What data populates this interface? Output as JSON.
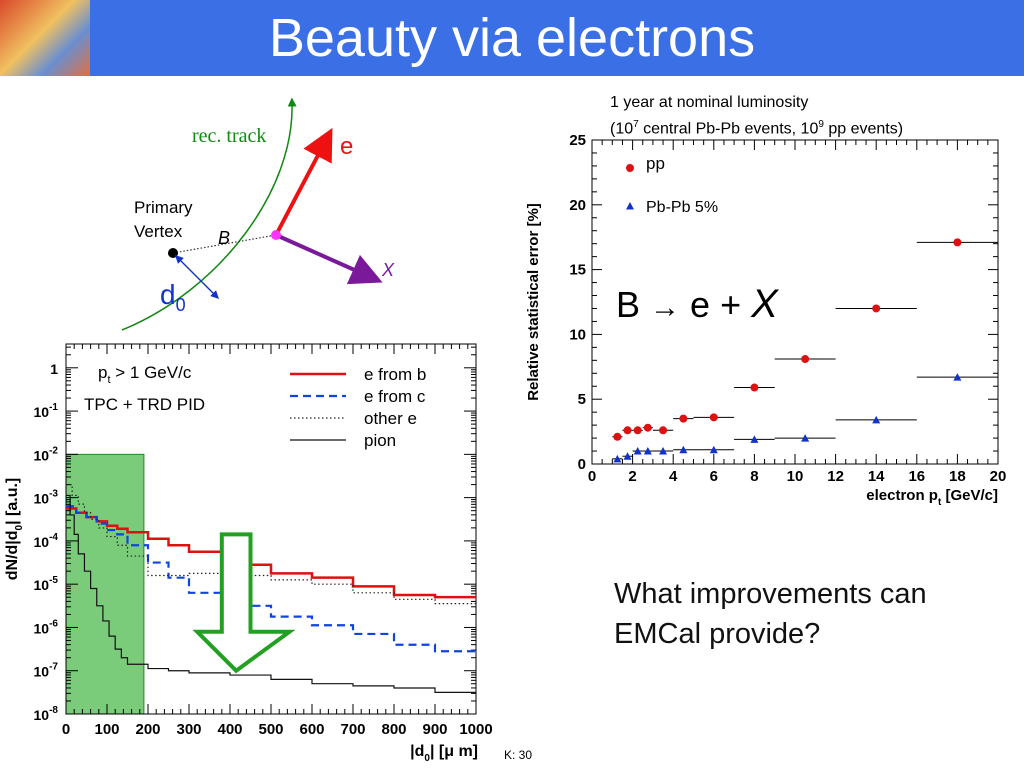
{
  "slide": {
    "title": "Beauty via electrons",
    "question": "What improvements can EMCal provide?",
    "formula_prefix": "B",
    "formula_arrow": "→",
    "formula_mid": "e +",
    "formula_x": "X",
    "footer": "K: 30",
    "colors": {
      "header": "#3a6fe6",
      "title": "#ffffff"
    }
  },
  "diagram": {
    "rec_track": "rec. track",
    "electron": "e",
    "primary_vertex_line1": "Primary",
    "primary_vertex_line2": "Vertex",
    "b_label": "B",
    "x_label": "X",
    "d0_label": "d",
    "d0_sub": "0"
  },
  "chart_data": [
    {
      "type": "line",
      "title_line1": "1 year at nominal luminosity",
      "title_line2_a": "(10",
      "title_line2_sup1": "7",
      "title_line2_b": " central Pb-Pb events, 10",
      "title_line2_sup2": "9",
      "title_line2_c": " pp events)",
      "xlabel": "electron  p",
      "xlabel_sub": "t",
      "xlabel_unit": " [GeV/c]",
      "ylabel": "Relative statistical error [%]",
      "xlim": [
        0,
        20
      ],
      "ylim": [
        0,
        25
      ],
      "xticks": [
        0,
        2,
        4,
        6,
        8,
        10,
        12,
        14,
        16,
        18,
        20
      ],
      "yticks": [
        0,
        5,
        10,
        15,
        20,
        25
      ],
      "legend_position": "top-left",
      "series": [
        {
          "name": "pp",
          "color": "#dd1111",
          "marker": "circle",
          "points": [
            {
              "x": 1.25,
              "y": 2.1,
              "xmin": 1.0,
              "xmax": 1.5
            },
            {
              "x": 1.75,
              "y": 2.6,
              "xmin": 1.5,
              "xmax": 2.0
            },
            {
              "x": 2.25,
              "y": 2.6,
              "xmin": 2.0,
              "xmax": 2.5
            },
            {
              "x": 2.75,
              "y": 2.8,
              "xmin": 2.5,
              "xmax": 3.0
            },
            {
              "x": 3.5,
              "y": 2.6,
              "xmin": 3.0,
              "xmax": 4.0
            },
            {
              "x": 4.5,
              "y": 3.5,
              "xmin": 4.0,
              "xmax": 5.0
            },
            {
              "x": 6.0,
              "y": 3.6,
              "xmin": 5.0,
              "xmax": 7.0
            },
            {
              "x": 8.0,
              "y": 5.9,
              "xmin": 7.0,
              "xmax": 9.0
            },
            {
              "x": 10.5,
              "y": 8.1,
              "xmin": 9.0,
              "xmax": 12.0
            },
            {
              "x": 14.0,
              "y": 12.0,
              "xmin": 12.0,
              "xmax": 16.0
            },
            {
              "x": 18.0,
              "y": 17.1,
              "xmin": 16.0,
              "xmax": 20.0
            }
          ]
        },
        {
          "name": "Pb-Pb 5%",
          "color": "#1133cc",
          "marker": "triangle",
          "points": [
            {
              "x": 1.25,
              "y": 0.4,
              "xmin": 1.0,
              "xmax": 1.5
            },
            {
              "x": 1.75,
              "y": 0.6,
              "xmin": 1.5,
              "xmax": 2.0
            },
            {
              "x": 2.25,
              "y": 1.0,
              "xmin": 2.0,
              "xmax": 2.5
            },
            {
              "x": 2.75,
              "y": 1.0,
              "xmin": 2.5,
              "xmax": 3.0
            },
            {
              "x": 3.5,
              "y": 1.0,
              "xmin": 3.0,
              "xmax": 4.0
            },
            {
              "x": 4.5,
              "y": 1.1,
              "xmin": 4.0,
              "xmax": 5.0
            },
            {
              "x": 6.0,
              "y": 1.1,
              "xmin": 5.0,
              "xmax": 7.0
            },
            {
              "x": 8.0,
              "y": 1.9,
              "xmin": 7.0,
              "xmax": 9.0
            },
            {
              "x": 10.5,
              "y": 2.0,
              "xmin": 9.0,
              "xmax": 12.0
            },
            {
              "x": 14.0,
              "y": 3.4,
              "xmin": 12.0,
              "xmax": 16.0
            },
            {
              "x": 18.0,
              "y": 6.7,
              "xmin": 16.0,
              "xmax": 20.0
            }
          ]
        }
      ]
    },
    {
      "type": "line",
      "xlabel": "|d",
      "xlabel_sub": "0",
      "xlabel_unit": "| [μ m]",
      "ylabel_a": "dN/d|d",
      "ylabel_sub": "0",
      "ylabel_b": "| [a.u.]",
      "log_y": true,
      "xlim": [
        0,
        1000
      ],
      "ylim_exp": [
        -8,
        0.55
      ],
      "xticks": [
        0,
        100,
        200,
        300,
        400,
        500,
        600,
        700,
        800,
        900,
        1000
      ],
      "yticks": [
        {
          "exp": 0,
          "label": "1",
          "sup": ""
        },
        {
          "exp": -1,
          "label": "10",
          "sup": "-1"
        },
        {
          "exp": -2,
          "label": "10",
          "sup": "-2"
        },
        {
          "exp": -3,
          "label": "10",
          "sup": "-3"
        },
        {
          "exp": -4,
          "label": "10",
          "sup": "-4"
        },
        {
          "exp": -5,
          "label": "10",
          "sup": "-5"
        },
        {
          "exp": -6,
          "label": "10",
          "sup": "-6"
        },
        {
          "exp": -7,
          "label": "10",
          "sup": "-7"
        },
        {
          "exp": -8,
          "label": "10",
          "sup": "-8"
        }
      ],
      "cut_text_a": "p",
      "cut_text_sub": "t",
      "cut_text_b": " > 1 GeV/c",
      "pid_text": "TPC + TRD  PID",
      "highlight_range": {
        "x": [
          0,
          190
        ],
        "ymax_exp": -2.0,
        "color": "#22aa22"
      },
      "reduction_arrow": {
        "x_left": 350,
        "x_right": 480,
        "x_tip": 415,
        "top_exp": -3.85,
        "mid_exp": -6.1,
        "tip_exp": -7.0,
        "color": "#22a022"
      },
      "legend_position": "top-right",
      "series": [
        {
          "name": "e from b",
          "color": "#dd1111",
          "dash": "",
          "width": 2.5,
          "x": [
            0,
            25,
            50,
            75,
            100,
            125,
            150,
            200,
            250,
            300,
            400,
            500,
            600,
            700,
            800,
            900,
            1000
          ],
          "y_exp": [
            -3.25,
            -3.35,
            -3.45,
            -3.55,
            -3.65,
            -3.72,
            -3.8,
            -3.95,
            -4.1,
            -4.25,
            -4.55,
            -4.75,
            -4.85,
            -5.05,
            -5.25,
            -5.3,
            -5.35
          ]
        },
        {
          "name": "e from c",
          "color": "#1144dd",
          "dash": "8,5",
          "width": 2.2,
          "x": [
            0,
            25,
            50,
            75,
            100,
            125,
            150,
            200,
            250,
            300,
            400,
            500,
            600,
            700,
            800,
            900,
            1000
          ],
          "y_exp": [
            -3.2,
            -3.35,
            -3.45,
            -3.6,
            -3.75,
            -3.85,
            -4.1,
            -4.5,
            -4.85,
            -5.2,
            -5.5,
            -5.75,
            -5.95,
            -6.15,
            -6.4,
            -6.55,
            -6.55
          ]
        },
        {
          "name": "other e",
          "color": "#222222",
          "dash": "1.5,2.5",
          "width": 1.2,
          "x": [
            0,
            15,
            30,
            45,
            60,
            80,
            100,
            125,
            150,
            200,
            300,
            400,
            500,
            600,
            700,
            800,
            900,
            1000
          ],
          "y_exp": [
            -2.7,
            -2.95,
            -3.15,
            -3.35,
            -3.5,
            -3.7,
            -3.9,
            -4.1,
            -4.35,
            -4.8,
            -4.75,
            -4.8,
            -4.9,
            -5.0,
            -5.2,
            -5.35,
            -5.45,
            -5.45
          ]
        },
        {
          "name": "pion",
          "color": "#111111",
          "dash": "",
          "width": 1.2,
          "x": [
            0,
            10,
            20,
            30,
            45,
            60,
            75,
            90,
            105,
            120,
            135,
            150,
            200,
            250,
            300,
            400,
            500,
            600,
            700,
            800,
            900,
            1000
          ],
          "y_exp": [
            -2.95,
            -3.4,
            -3.85,
            -4.3,
            -4.7,
            -5.1,
            -5.5,
            -5.85,
            -6.2,
            -6.5,
            -6.7,
            -6.85,
            -6.95,
            -7.0,
            -7.05,
            -7.1,
            -7.2,
            -7.3,
            -7.35,
            -7.4,
            -7.5,
            -7.5
          ]
        }
      ]
    }
  ]
}
